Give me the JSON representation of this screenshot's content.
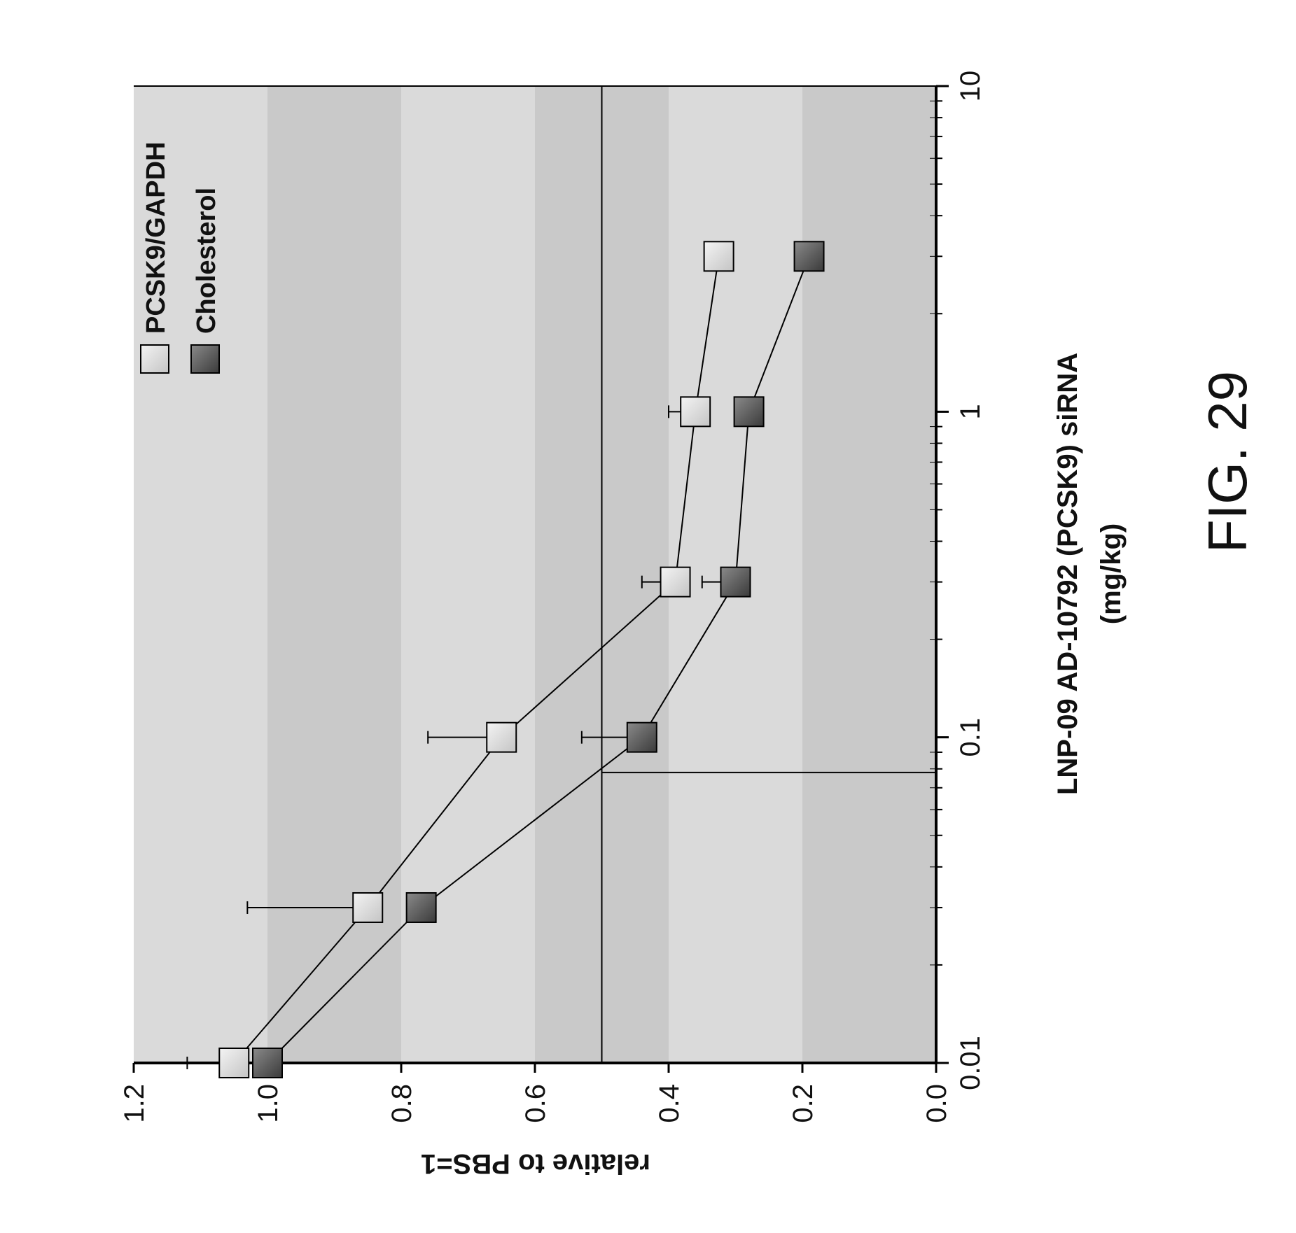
{
  "figure_label": "FIG. 29",
  "chart_data": {
    "type": "line",
    "orientation": "rotated 90 degrees counter-clockwise",
    "xlabel": "LNP-09 AD-10792 (PCSK9) siRNA",
    "xlabel_units": "(mg/kg)",
    "ylabel": "relative to PBS=1",
    "xscale": "log",
    "xlim": [
      0.01,
      10
    ],
    "ylim": [
      0,
      1.2
    ],
    "x_tick_labels": [
      "0.01",
      "0.1",
      "1",
      "10"
    ],
    "y_tick_labels": [
      "0.0",
      "0.2",
      "0.4",
      "0.6",
      "0.8",
      "1.0",
      "1.2"
    ],
    "y_ticks": [
      0,
      0.2,
      0.4,
      0.6,
      0.8,
      1.0,
      1.2
    ],
    "x_ticks": [
      0.01,
      0.1,
      1,
      10
    ],
    "legend_placement": "top-left",
    "reference_lines": {
      "y": 0.5,
      "x": 0.078
    },
    "series": [
      {
        "name": "PCSK9/GAPDH",
        "color": "#e6e6e6",
        "x": [
          0.01,
          0.03,
          0.1,
          0.3,
          1,
          3
        ],
        "y": [
          1.05,
          0.85,
          0.65,
          0.39,
          0.36,
          0.325
        ],
        "error_upper": [
          1.12,
          1.03,
          0.76,
          0.44,
          0.4,
          null
        ]
      },
      {
        "name": "Cholesterol",
        "color": "#555555",
        "x": [
          0.01,
          0.03,
          0.1,
          0.3,
          1,
          3
        ],
        "y": [
          1.0,
          0.77,
          0.44,
          0.3,
          0.28,
          0.19
        ],
        "error_upper": [
          null,
          null,
          0.53,
          0.35,
          null,
          null
        ]
      }
    ]
  }
}
